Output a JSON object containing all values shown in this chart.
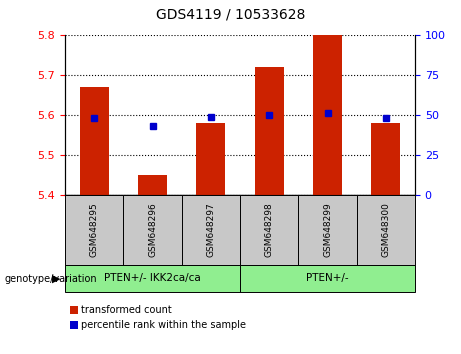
{
  "title": "GDS4119 / 10533628",
  "samples": [
    "GSM648295",
    "GSM648296",
    "GSM648297",
    "GSM648298",
    "GSM648299",
    "GSM648300"
  ],
  "red_values": [
    5.67,
    5.45,
    5.58,
    5.72,
    5.8,
    5.58
  ],
  "blue_values": [
    48,
    43,
    49,
    50,
    51,
    48
  ],
  "ylim_left": [
    5.4,
    5.8
  ],
  "ylim_right": [
    0,
    100
  ],
  "yticks_left": [
    5.4,
    5.5,
    5.6,
    5.7,
    5.8
  ],
  "yticks_right": [
    0,
    25,
    50,
    75,
    100
  ],
  "groups": [
    {
      "label": "PTEN+/- IKK2ca/ca",
      "count": 3,
      "color": "#90EE90"
    },
    {
      "label": "PTEN+/-",
      "count": 3,
      "color": "#90EE90"
    }
  ],
  "bar_color": "#CC2200",
  "dot_color": "#0000CC",
  "bar_width": 0.5,
  "bg_xlabel": "#C8C8C8",
  "legend_red_label": "transformed count",
  "legend_blue_label": "percentile rank within the sample",
  "xlabel_label": "genotype/variation"
}
